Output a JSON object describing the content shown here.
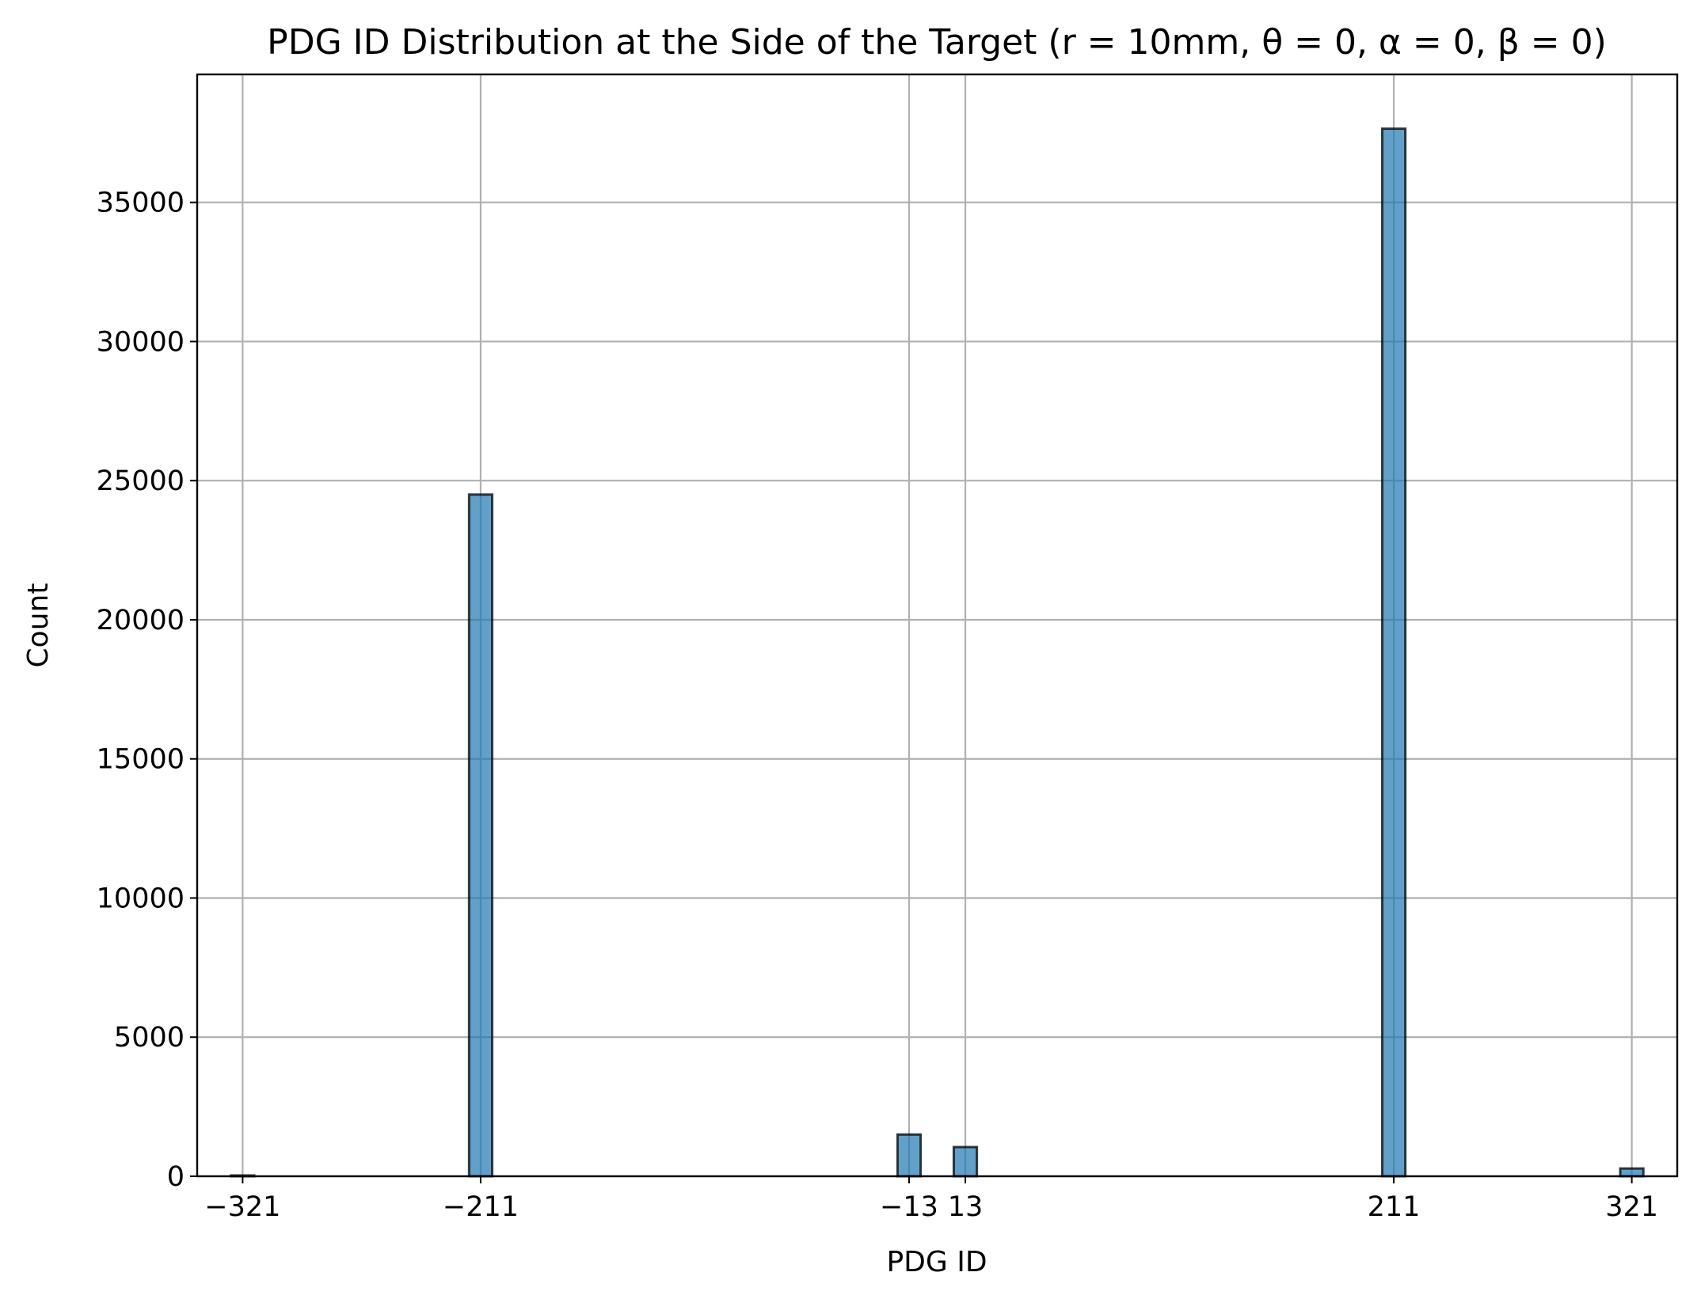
{
  "chart_data": {
    "type": "bar",
    "title": "PDG ID Distribution at the Side of the Target (r = 10mm, θ = 0, α = 0, β = 0)",
    "xlabel": "PDG ID",
    "ylabel": "Count",
    "xlim": [
      -342,
      342
    ],
    "ylim": [
      0,
      39600
    ],
    "x_ticks": [
      -321,
      -211,
      -13,
      13,
      211,
      321
    ],
    "x_tick_labels": [
      "−321",
      "−211",
      "−13",
      "13",
      "211",
      "321"
    ],
    "y_ticks": [
      0,
      5000,
      10000,
      15000,
      20000,
      25000,
      30000,
      35000
    ],
    "y_tick_labels": [
      "0",
      "5000",
      "10000",
      "15000",
      "20000",
      "25000",
      "30000",
      "35000"
    ],
    "grid": true,
    "bin_width": 10.7,
    "categories": [
      "−321",
      "−211",
      "−13",
      "13",
      "211",
      "321"
    ],
    "x": [
      -321,
      -211,
      -13,
      13,
      211,
      321
    ],
    "values": [
      30,
      24500,
      1500,
      1050,
      37650,
      280
    ],
    "colors": {
      "bar_fill": "#1f77b4",
      "bar_alpha": 0.7,
      "bar_edge": "#000000",
      "grid": "#b0b0b0"
    }
  }
}
